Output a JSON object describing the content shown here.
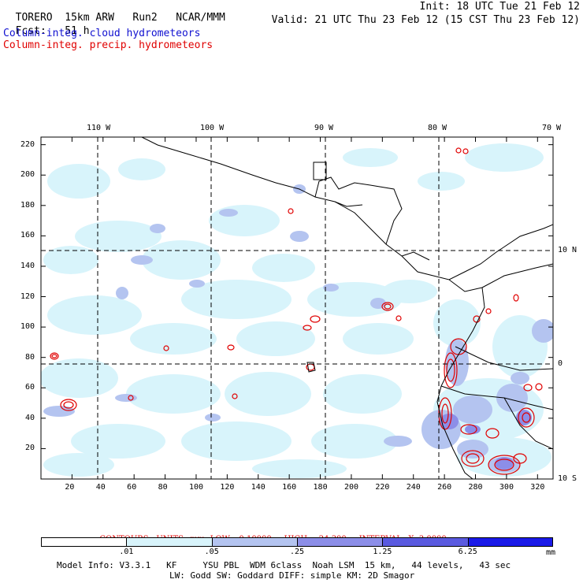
{
  "header": {
    "model": "TORERO",
    "resolution": "15km ARW",
    "run": "Run2",
    "org": "NCAR/MMM",
    "init": "Init: 18 UTC Tue 21 Feb 12",
    "fcst_label": "Fcst:",
    "fcst_value": "51 h",
    "valid": "Valid: 21 UTC Thu 23 Feb 12 (15 CST Thu 23 Feb 12)",
    "field1": "Column-integ. cloud hydrometeors",
    "field2": "Column-integ. precip. hydrometeors"
  },
  "map": {
    "lon_labels": [
      "110 W",
      "100 W",
      "90 W",
      "80 W",
      "70 W"
    ],
    "lat_labels": [
      "10 N",
      "0",
      "10 S"
    ],
    "x_ticks": [
      "20",
      "40",
      "60",
      "80",
      "100",
      "120",
      "140",
      "160",
      "180",
      "200",
      "220",
      "240",
      "260",
      "280",
      "300",
      "320"
    ],
    "y_ticks": [
      "20",
      "40",
      "60",
      "80",
      "100",
      "120",
      "140",
      "160",
      "180",
      "200",
      "220"
    ],
    "grid_x_range": [
      0,
      330
    ],
    "grid_y_range": [
      0,
      225
    ],
    "lon_lines_x": [
      40,
      112.5,
      185,
      260
    ],
    "lat_lines_y": [
      150,
      76
    ]
  },
  "contours": {
    "label": "CONTOURS:",
    "units": "UNITS=mm",
    "low": "LOW= 0.10000",
    "high": "HIGH=  24.300",
    "interval": "INTERVAL=X  3.0000"
  },
  "colorbar": {
    "levels": [
      ".01",
      ".05",
      ".25",
      "1.25",
      "6.25"
    ],
    "unit": "mm",
    "colors": [
      "#ffffff",
      "#d8f4fb",
      "#b4c4f0",
      "#8c8ee8",
      "#5a5ae0",
      "#1a1ae8"
    ]
  },
  "info": {
    "line1": "Model Info: V3.3.1   KF     YSU PBL  WDM 6class  Noah LSM  15 km,   44 levels,   43 sec",
    "line2": "LW: Godd SW: Goddard DIFF: simple KM: 2D Smagor"
  }
}
